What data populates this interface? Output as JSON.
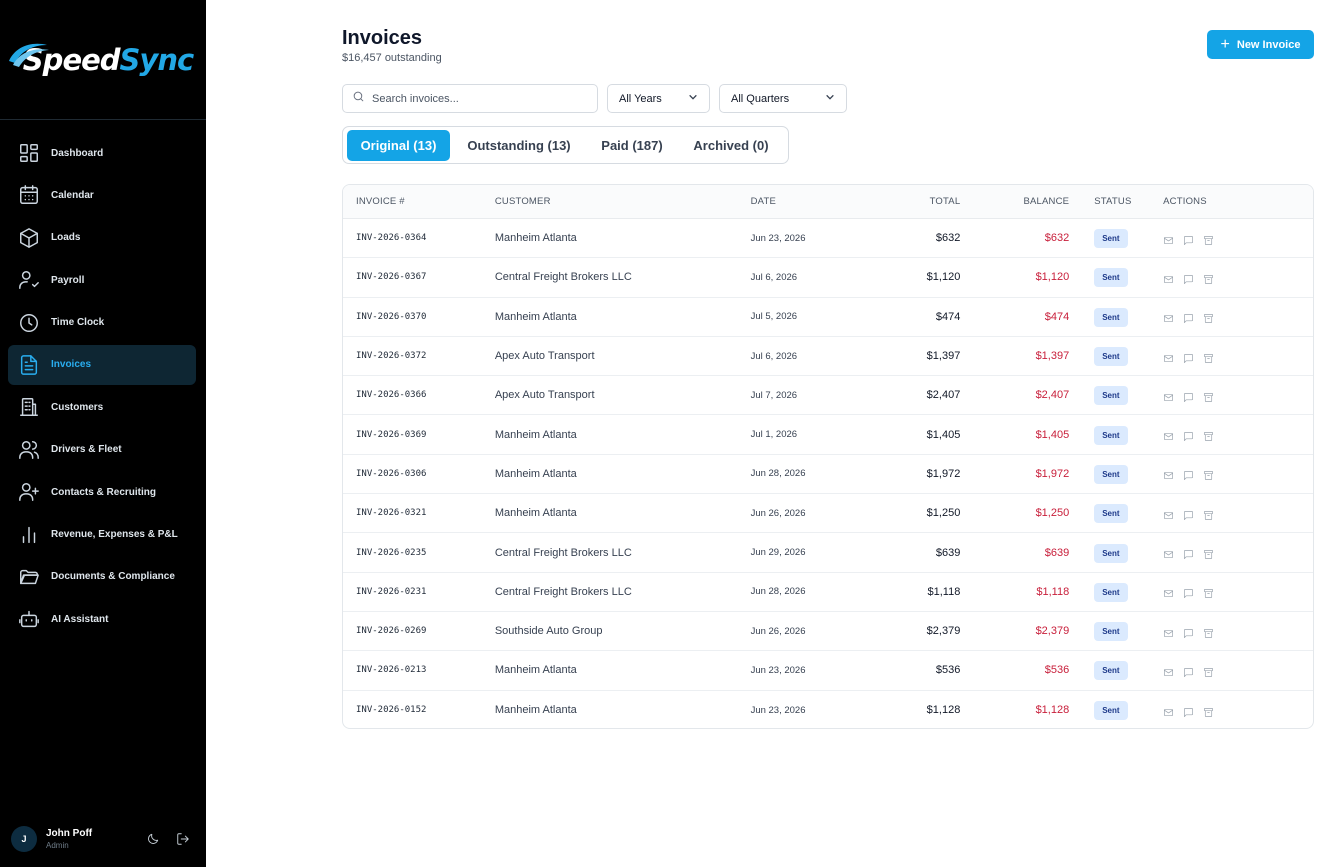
{
  "brand": {
    "name_part1": "Speed",
    "name_part2": "Sync",
    "accent": "#22a8e6"
  },
  "sidebar": {
    "items": [
      {
        "label": "Dashboard",
        "icon": "dashboard-icon"
      },
      {
        "label": "Calendar",
        "icon": "calendar-icon"
      },
      {
        "label": "Loads",
        "icon": "box-icon"
      },
      {
        "label": "Payroll",
        "icon": "user-check-icon"
      },
      {
        "label": "Time Clock",
        "icon": "clock-icon"
      },
      {
        "label": "Invoices",
        "icon": "file-text-icon",
        "active": true
      },
      {
        "label": "Customers",
        "icon": "building-icon"
      },
      {
        "label": "Drivers & Fleet",
        "icon": "users-icon"
      },
      {
        "label": "Contacts & Recruiting",
        "icon": "user-plus-icon"
      },
      {
        "label": "Revenue, Expenses & P&L",
        "icon": "bar-chart-icon"
      },
      {
        "label": "Documents & Compliance",
        "icon": "folder-icon"
      },
      {
        "label": "AI Assistant",
        "icon": "robot-icon"
      }
    ],
    "user": {
      "initial": "J",
      "name": "John Poff",
      "role": "Admin"
    }
  },
  "header": {
    "title": "Invoices",
    "subtitle": "$16,457 outstanding",
    "new_button": "New Invoice"
  },
  "filters": {
    "search_placeholder": "Search invoices...",
    "year": "All Years",
    "quarter": "All Quarters"
  },
  "tabs": [
    {
      "label": "Original (13)",
      "active": true
    },
    {
      "label": "Outstanding (13)"
    },
    {
      "label": "Paid (187)"
    },
    {
      "label": "Archived (0)"
    }
  ],
  "table": {
    "columns": {
      "invoice": "INVOICE #",
      "customer": "CUSTOMER",
      "date": "DATE",
      "total": "TOTAL",
      "balance": "BALANCE",
      "status": "STATUS",
      "actions": "ACTIONS"
    },
    "rows": [
      {
        "invoice": "INV-2026-0364",
        "customer": "Manheim Atlanta",
        "date": "Jun 23, 2026",
        "total": "$632",
        "balance": "$632",
        "status": "Sent"
      },
      {
        "invoice": "INV-2026-0367",
        "customer": "Central Freight Brokers LLC",
        "date": "Jul 6, 2026",
        "total": "$1,120",
        "balance": "$1,120",
        "status": "Sent"
      },
      {
        "invoice": "INV-2026-0370",
        "customer": "Manheim Atlanta",
        "date": "Jul 5, 2026",
        "total": "$474",
        "balance": "$474",
        "status": "Sent"
      },
      {
        "invoice": "INV-2026-0372",
        "customer": "Apex Auto Transport",
        "date": "Jul 6, 2026",
        "total": "$1,397",
        "balance": "$1,397",
        "status": "Sent"
      },
      {
        "invoice": "INV-2026-0366",
        "customer": "Apex Auto Transport",
        "date": "Jul 7, 2026",
        "total": "$2,407",
        "balance": "$2,407",
        "status": "Sent"
      },
      {
        "invoice": "INV-2026-0369",
        "customer": "Manheim Atlanta",
        "date": "Jul 1, 2026",
        "total": "$1,405",
        "balance": "$1,405",
        "status": "Sent"
      },
      {
        "invoice": "INV-2026-0306",
        "customer": "Manheim Atlanta",
        "date": "Jun 28, 2026",
        "total": "$1,972",
        "balance": "$1,972",
        "status": "Sent"
      },
      {
        "invoice": "INV-2026-0321",
        "customer": "Manheim Atlanta",
        "date": "Jun 26, 2026",
        "total": "$1,250",
        "balance": "$1,250",
        "status": "Sent"
      },
      {
        "invoice": "INV-2026-0235",
        "customer": "Central Freight Brokers LLC",
        "date": "Jun 29, 2026",
        "total": "$639",
        "balance": "$639",
        "status": "Sent"
      },
      {
        "invoice": "INV-2026-0231",
        "customer": "Central Freight Brokers LLC",
        "date": "Jun 28, 2026",
        "total": "$1,118",
        "balance": "$1,118",
        "status": "Sent"
      },
      {
        "invoice": "INV-2026-0269",
        "customer": "Southside Auto Group",
        "date": "Jun 26, 2026",
        "total": "$2,379",
        "balance": "$2,379",
        "status": "Sent"
      },
      {
        "invoice": "INV-2026-0213",
        "customer": "Manheim Atlanta",
        "date": "Jun 23, 2026",
        "total": "$536",
        "balance": "$536",
        "status": "Sent"
      },
      {
        "invoice": "INV-2026-0152",
        "customer": "Manheim Atlanta",
        "date": "Jun 23, 2026",
        "total": "$1,128",
        "balance": "$1,128",
        "status": "Sent"
      }
    ]
  }
}
